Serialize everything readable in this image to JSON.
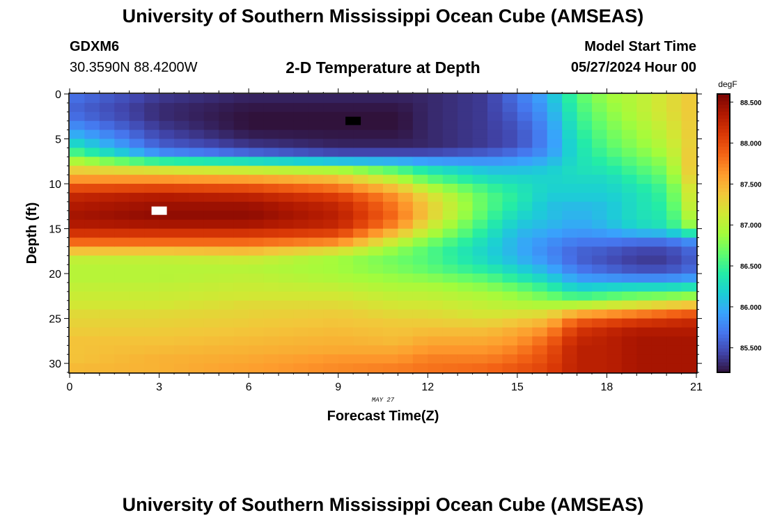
{
  "header": {
    "title": "University of Southern Mississippi Ocean Cube (AMSEAS)",
    "station_id": "GDXM6",
    "station_coords": "30.3590N  88.4200W",
    "plot_title": "2-D Temperature at Depth",
    "model_start_label": "Model Start Time",
    "model_start_value": "05/27/2024 Hour 00"
  },
  "footer": {
    "title": "University of Southern Mississippi Ocean Cube (AMSEAS)"
  },
  "chart_data": {
    "type": "heatmap",
    "title": "2-D Temperature at Depth",
    "xlabel": "Forecast Time(Z)",
    "ylabel": "Depth (ft)",
    "date_label": "MAY 27",
    "xlim": [
      0,
      21
    ],
    "ylim": [
      0,
      31
    ],
    "x_ticks": [
      0,
      3,
      6,
      9,
      12,
      15,
      18,
      21
    ],
    "y_ticks": [
      0,
      5,
      10,
      15,
      20,
      25,
      30
    ],
    "colorbar": {
      "units": "degF",
      "vmin": 85.2,
      "vmax": 88.6,
      "ticks": [
        "88.500",
        "88.000",
        "87.500",
        "87.000",
        "86.500",
        "86.000",
        "85.500"
      ],
      "colors": [
        "#30123b",
        "#4145ab",
        "#4675ed",
        "#39a2fc",
        "#1bcfd4",
        "#24eca6",
        "#61fc6c",
        "#a4fc3b",
        "#d1e834",
        "#f3c63a",
        "#fe9b2d",
        "#f36315",
        "#d93806",
        "#b11901",
        "#7a0403"
      ]
    },
    "grid": {
      "nx": 42,
      "ny": 31,
      "dx_hours": 0.5,
      "dy_ft": 1
    },
    "profile_depths_ft": [
      0,
      2,
      4,
      6,
      7,
      8,
      9,
      10,
      11,
      12,
      13,
      14,
      15,
      16,
      17,
      18,
      19,
      20,
      21,
      22,
      23,
      24,
      25,
      26,
      27,
      28,
      29,
      30,
      31
    ],
    "profiles": [
      {
        "time_hr": 0,
        "temps_degF": [
          85.7,
          85.6,
          85.9,
          86.4,
          86.8,
          87.2,
          87.5,
          87.8,
          88.2,
          88.3,
          88.4,
          88.4,
          88.3,
          88.0,
          87.7,
          87.1,
          87.0,
          87.0,
          87.0,
          87.1,
          87.1,
          87.2,
          87.3,
          87.3,
          87.4,
          87.4,
          87.4,
          87.4,
          87.5
        ]
      },
      {
        "time_hr": 3,
        "temps_degF": [
          85.4,
          85.3,
          85.4,
          85.6,
          86.0,
          86.9,
          87.5,
          87.8,
          88.3,
          88.4,
          88.5,
          88.5,
          88.3,
          88.0,
          87.7,
          87.1,
          87.0,
          87.0,
          87.0,
          87.1,
          87.1,
          87.2,
          87.3,
          87.3,
          87.4,
          87.4,
          87.5,
          87.5,
          87.5
        ]
      },
      {
        "time_hr": 6,
        "temps_degF": [
          85.3,
          85.2,
          85.2,
          85.4,
          85.8,
          86.8,
          87.4,
          87.8,
          88.2,
          88.4,
          88.5,
          88.5,
          88.3,
          88.0,
          87.7,
          87.2,
          87.0,
          87.0,
          87.1,
          87.1,
          87.2,
          87.3,
          87.3,
          87.4,
          87.4,
          87.5,
          87.5,
          87.6,
          87.6
        ]
      },
      {
        "time_hr": 9,
        "temps_degF": [
          85.3,
          85.2,
          85.2,
          85.3,
          85.6,
          86.6,
          87.3,
          87.6,
          88.0,
          88.2,
          88.3,
          88.3,
          88.2,
          87.9,
          87.5,
          86.9,
          86.9,
          86.9,
          87.0,
          87.1,
          87.2,
          87.3,
          87.4,
          87.4,
          87.5,
          87.5,
          87.6,
          87.7,
          87.7
        ]
      },
      {
        "time_hr": 11,
        "temps_degF": [
          85.3,
          85.2,
          85.2,
          85.3,
          85.6,
          86.4,
          86.8,
          87.2,
          87.6,
          87.7,
          87.8,
          87.8,
          87.6,
          87.2,
          86.9,
          86.7,
          86.7,
          86.8,
          86.9,
          87.0,
          87.1,
          87.2,
          87.3,
          87.4,
          87.4,
          87.5,
          87.6,
          87.7,
          87.8
        ]
      },
      {
        "time_hr": 12,
        "temps_degF": [
          85.3,
          85.3,
          85.3,
          85.3,
          85.6,
          86.2,
          86.5,
          86.8,
          87.2,
          87.3,
          87.4,
          87.3,
          87.1,
          86.9,
          86.6,
          86.6,
          86.6,
          86.7,
          86.9,
          87.0,
          87.1,
          87.2,
          87.3,
          87.4,
          87.5,
          87.6,
          87.7,
          87.8,
          87.8
        ]
      },
      {
        "time_hr": 14,
        "temps_degF": [
          85.4,
          85.4,
          85.4,
          85.4,
          85.7,
          86.0,
          86.2,
          86.4,
          86.6,
          86.6,
          86.6,
          86.5,
          86.4,
          86.3,
          86.2,
          86.2,
          86.3,
          86.5,
          86.7,
          86.9,
          87.0,
          87.1,
          87.2,
          87.4,
          87.5,
          87.6,
          87.7,
          87.8,
          87.9
        ]
      },
      {
        "time_hr": 15,
        "temps_degF": [
          85.7,
          85.6,
          85.5,
          85.5,
          85.8,
          86.0,
          86.2,
          86.3,
          86.4,
          86.4,
          86.3,
          86.2,
          86.1,
          86.0,
          86.0,
          86.0,
          86.1,
          86.3,
          86.5,
          86.8,
          86.9,
          87.1,
          87.3,
          87.5,
          87.6,
          87.7,
          87.8,
          87.9,
          88.0
        ]
      },
      {
        "time_hr": 16,
        "temps_degF": [
          86.0,
          85.9,
          85.8,
          85.8,
          85.9,
          86.1,
          86.2,
          86.2,
          86.2,
          86.1,
          86.1,
          86.1,
          86.0,
          85.9,
          85.8,
          85.8,
          85.9,
          86.1,
          86.3,
          86.6,
          86.8,
          87.1,
          87.4,
          87.6,
          87.8,
          87.9,
          88.0,
          88.0,
          88.1
        ]
      },
      {
        "time_hr": 17,
        "temps_degF": [
          86.6,
          86.5,
          86.4,
          86.3,
          86.3,
          86.3,
          86.3,
          86.2,
          86.2,
          86.1,
          86.0,
          86.0,
          85.9,
          85.8,
          85.6,
          85.6,
          85.6,
          85.8,
          86.0,
          86.3,
          86.7,
          87.3,
          87.8,
          88.1,
          88.2,
          88.3,
          88.3,
          88.3,
          88.3
        ]
      },
      {
        "time_hr": 18,
        "temps_degF": [
          86.9,
          86.8,
          86.7,
          86.6,
          86.5,
          86.4,
          86.3,
          86.2,
          86.2,
          86.1,
          86.1,
          86.1,
          86.0,
          85.8,
          85.6,
          85.5,
          85.5,
          85.7,
          86.0,
          86.4,
          86.8,
          87.4,
          87.9,
          88.2,
          88.3,
          88.3,
          88.3,
          88.3,
          88.3
        ]
      },
      {
        "time_hr": 19,
        "temps_degF": [
          87.0,
          87.0,
          86.9,
          86.8,
          86.7,
          86.6,
          86.5,
          86.4,
          86.3,
          86.3,
          86.3,
          86.3,
          86.2,
          85.8,
          85.5,
          85.4,
          85.4,
          85.6,
          86.0,
          86.5,
          86.9,
          87.5,
          88.0,
          88.3,
          88.4,
          88.4,
          88.4,
          88.4,
          88.4
        ]
      },
      {
        "time_hr": 20,
        "temps_degF": [
          87.2,
          87.2,
          87.1,
          87.0,
          86.9,
          86.8,
          86.7,
          86.6,
          86.5,
          86.5,
          86.4,
          86.4,
          86.3,
          85.8,
          85.5,
          85.4,
          85.4,
          85.6,
          86.0,
          86.5,
          87.0,
          87.6,
          88.1,
          88.3,
          88.4,
          88.4,
          88.4,
          88.4,
          88.4
        ]
      },
      {
        "time_hr": 21,
        "temps_degF": [
          87.4,
          87.4,
          87.4,
          87.4,
          87.5,
          87.5,
          87.5,
          87.4,
          87.3,
          87.3,
          87.2,
          87.1,
          86.9,
          86.0,
          85.7,
          85.6,
          85.6,
          85.7,
          86.1,
          86.6,
          87.1,
          87.7,
          88.2,
          88.3,
          88.4,
          88.4,
          88.4,
          88.4,
          88.4
        ]
      }
    ],
    "annotations": [
      {
        "label": "minimum",
        "marker": "black",
        "time_hr": 9.5,
        "depth_ft": 3.0
      },
      {
        "label": "maximum",
        "marker": "white",
        "time_hr": 3.0,
        "depth_ft": 13.0
      }
    ]
  }
}
